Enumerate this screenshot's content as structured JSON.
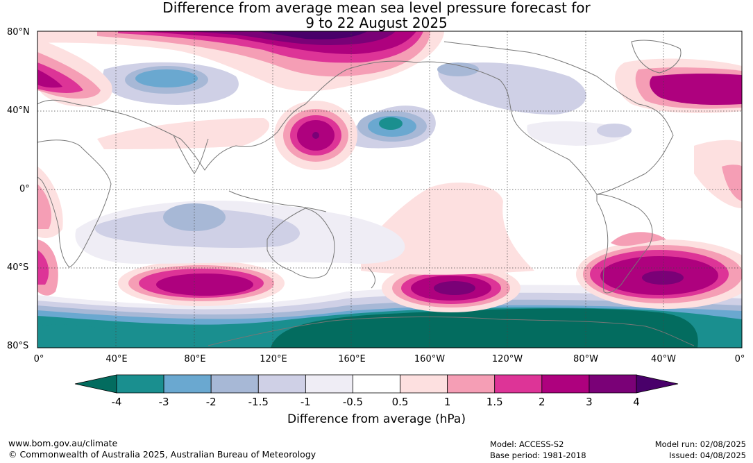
{
  "title": {
    "line1": "Difference from average mean sea level pressure forecast for",
    "line2": "9 to 22 August 2025"
  },
  "map": {
    "lat_labels": [
      "80°N",
      "40°N",
      "0°",
      "40°S",
      "80°S"
    ],
    "lon_labels": [
      "0°",
      "40°E",
      "80°E",
      "120°E",
      "160°E",
      "160°W",
      "120°W",
      "80°W",
      "40°W",
      "0°"
    ],
    "ocean_color": "#ffffff",
    "coast_color": "#777777"
  },
  "colorbar": {
    "ticks": [
      "-4",
      "-3",
      "-2",
      "-1.5",
      "-1",
      "-0.5",
      "0.5",
      "1",
      "1.5",
      "2",
      "3",
      "4"
    ],
    "colors": [
      "#1a8f8f",
      "#6aa8d0",
      "#a7b8d6",
      "#cfd0e6",
      "#efedf5",
      "#ffffff",
      "#fde0e0",
      "#f59eb5",
      "#dd3497",
      "#ae017e",
      "#7a0177"
    ],
    "extend_low_color": "#036c5f",
    "extend_high_color": "#49006a",
    "label": "Difference from average (hPa)"
  },
  "footer": {
    "website": "www.bom.gov.au/climate",
    "copyright": "© Commonwealth of Australia 2025, Australian Bureau of Meteorology",
    "model": "Model: ACCESS-S2",
    "base_period": "Base period: 1981-2018",
    "model_run": "Model run: 02/08/2025",
    "issued": "Issued: 04/08/2025"
  }
}
